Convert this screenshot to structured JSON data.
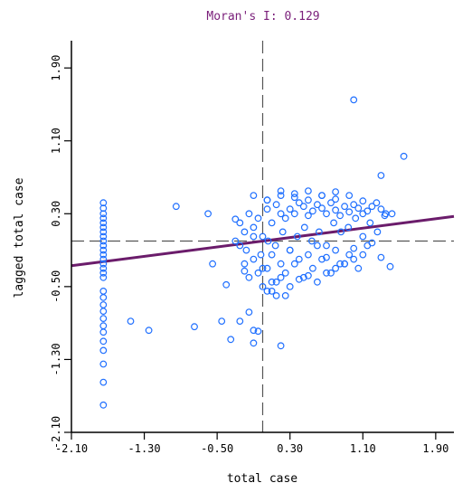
{
  "chart_data": {
    "type": "scatter",
    "title": "Moran's I: 0.129",
    "xlabel": "total case",
    "ylabel": "lagged total case",
    "xlim": [
      -2.1,
      2.1
    ],
    "ylim": [
      -2.1,
      2.1
    ],
    "xticks": [
      "-2.10",
      "-1.30",
      "-0.50",
      "0.30",
      "1.10",
      "1.90"
    ],
    "yticks": [
      "-2.10",
      "-1.30",
      "-0.50",
      "0.30",
      "1.10",
      "1.90"
    ],
    "reference_lines": {
      "x": 0.0,
      "y": 0.0
    },
    "regression": {
      "slope": 0.129,
      "intercept": 0.0
    },
    "points_x": [
      -1.75,
      -1.75,
      -1.75,
      -1.75,
      -1.75,
      -1.75,
      -1.75,
      -1.75,
      -1.75,
      -1.75,
      -1.75,
      -1.75,
      -1.75,
      -1.75,
      -1.75,
      -1.75,
      -1.75,
      -1.75,
      -1.75,
      -1.75,
      -1.75,
      -1.75,
      -1.75,
      -1.75,
      -1.75,
      -1.75,
      -1.75,
      -1.75,
      -1.75,
      -1.45,
      -1.25,
      -0.95,
      -0.75,
      -0.6,
      -0.55,
      -0.45,
      -0.4,
      -0.35,
      -0.3,
      -0.25,
      -0.2,
      -0.15,
      -0.1,
      -0.1,
      -0.05,
      0.05,
      0.05,
      0.1,
      0.15,
      0.2,
      0.25,
      1.0,
      1.3,
      1.55,
      -0.3,
      -0.25,
      -0.2,
      -0.15,
      -0.1,
      -0.05,
      0.0,
      0.05,
      0.1,
      0.15,
      0.2,
      0.25,
      0.3,
      0.35,
      0.4,
      0.45,
      0.5,
      0.55,
      0.6,
      0.65,
      0.7,
      0.75,
      0.8,
      0.85,
      0.9,
      0.95,
      1.0,
      1.05,
      1.1,
      1.15,
      1.2,
      1.25,
      1.3,
      1.35,
      -0.25,
      -0.18,
      -0.1,
      -0.02,
      0.06,
      0.14,
      0.22,
      0.3,
      0.38,
      0.46,
      0.54,
      0.62,
      0.7,
      0.78,
      0.86,
      0.94,
      1.02,
      1.1,
      1.18,
      1.26,
      1.34,
      1.42,
      -0.2,
      -0.1,
      0.0,
      0.1,
      0.2,
      0.3,
      0.4,
      0.5,
      0.6,
      0.7,
      0.8,
      0.9,
      1.0,
      1.1,
      1.2,
      1.3,
      1.4,
      -0.15,
      -0.05,
      0.05,
      0.15,
      0.25,
      0.35,
      0.45,
      0.55,
      0.65,
      0.75,
      0.85,
      0.95,
      1.05,
      1.15,
      0.0,
      0.1,
      0.2,
      0.3,
      0.4,
      0.5,
      0.6,
      0.7,
      0.8,
      0.9,
      1.0,
      -0.1,
      0.05,
      0.2,
      0.35,
      0.5,
      0.65,
      0.8,
      0.95,
      1.1,
      0.2,
      0.35,
      0.5,
      0.65,
      0.8
    ],
    "points_y": [
      0.42,
      0.36,
      0.3,
      0.25,
      0.2,
      0.15,
      0.1,
      0.05,
      0.0,
      -0.05,
      -0.1,
      -0.15,
      -0.2,
      -0.25,
      -0.3,
      -0.35,
      -0.4,
      -0.55,
      -0.62,
      -0.7,
      -0.77,
      -0.85,
      -0.93,
      -1.0,
      -1.1,
      -1.2,
      -1.35,
      -1.55,
      -1.8,
      -0.88,
      -0.98,
      0.38,
      -0.94,
      0.3,
      -0.25,
      -0.88,
      -0.48,
      -1.08,
      0.24,
      -0.88,
      -0.33,
      -0.78,
      -0.98,
      -1.12,
      -0.99,
      0.45,
      -0.55,
      -0.55,
      -0.6,
      -1.15,
      -0.6,
      1.55,
      0.72,
      0.93,
      0.0,
      0.2,
      0.1,
      0.3,
      0.15,
      0.25,
      0.05,
      0.35,
      0.2,
      0.4,
      0.3,
      0.25,
      0.35,
      0.3,
      0.42,
      0.38,
      0.28,
      0.33,
      0.4,
      0.36,
      0.3,
      0.42,
      0.34,
      0.28,
      0.38,
      0.32,
      0.4,
      0.36,
      0.3,
      0.33,
      0.38,
      0.42,
      0.35,
      0.3,
      -0.05,
      -0.1,
      0.05,
      -0.15,
      0.0,
      -0.05,
      0.1,
      -0.1,
      0.05,
      0.15,
      0.0,
      0.1,
      -0.05,
      0.2,
      0.1,
      0.15,
      0.25,
      0.05,
      0.2,
      0.1,
      0.28,
      0.3,
      -0.25,
      -0.2,
      -0.3,
      -0.15,
      -0.25,
      -0.1,
      -0.2,
      -0.15,
      -0.05,
      -0.18,
      -0.1,
      -0.25,
      -0.08,
      -0.15,
      -0.02,
      -0.18,
      -0.28,
      -0.4,
      -0.35,
      -0.3,
      -0.45,
      -0.35,
      -0.25,
      -0.4,
      -0.3,
      -0.2,
      -0.35,
      -0.25,
      -0.15,
      -0.3,
      -0.05,
      -0.5,
      -0.45,
      -0.4,
      -0.5,
      -0.42,
      -0.38,
      -0.45,
      -0.35,
      -0.3,
      -0.25,
      -0.2,
      0.5,
      0.45,
      0.5,
      0.48,
      0.45,
      0.5,
      0.46,
      0.5,
      0.44,
      0.55,
      0.52,
      0.55,
      0.5,
      0.54
    ],
    "colors": {
      "points": "#1f6fff",
      "regression": "#6b1c6b",
      "title": "#7a1f7a",
      "reference": "#555555"
    }
  }
}
